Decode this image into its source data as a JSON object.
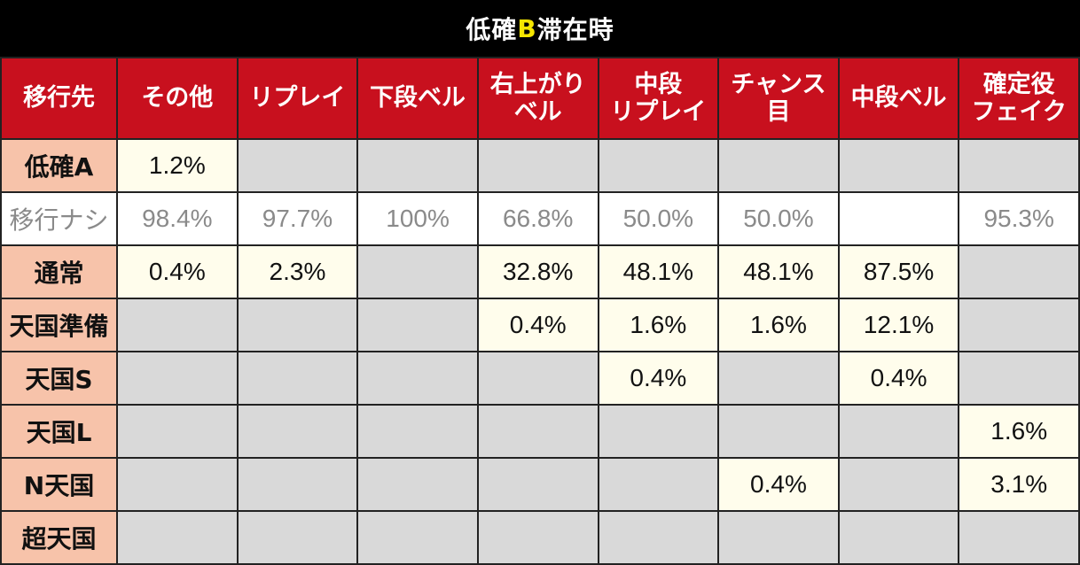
{
  "title": {
    "prefix": "低確",
    "highlight": "B",
    "suffix": "滞在時"
  },
  "table": {
    "corner": "移行先",
    "columns": [
      [
        "その他"
      ],
      [
        "リプレイ"
      ],
      [
        "下段ベル"
      ],
      [
        "右上がり",
        "ベル"
      ],
      [
        "中段",
        "リプレイ"
      ],
      [
        "チャンス目"
      ],
      [
        "中段ベル"
      ],
      [
        "確定役",
        "フェイク"
      ]
    ],
    "rows": [
      {
        "label": "低確A",
        "values": [
          "1.2%",
          "",
          "",
          "",
          "",
          "",
          "",
          ""
        ]
      },
      {
        "label": "移行ナシ",
        "values": [
          "98.4%",
          "97.7%",
          "100%",
          "66.8%",
          "50.0%",
          "50.0%",
          "",
          "95.3%"
        ]
      },
      {
        "label": "通常",
        "values": [
          "0.4%",
          "2.3%",
          "",
          "32.8%",
          "48.1%",
          "48.1%",
          "87.5%",
          ""
        ]
      },
      {
        "label": "天国準備",
        "values": [
          "",
          "",
          "",
          "0.4%",
          "1.6%",
          "1.6%",
          "12.1%",
          ""
        ]
      },
      {
        "label": "天国S",
        "values": [
          "",
          "",
          "",
          "",
          "0.4%",
          "",
          "0.4%",
          ""
        ]
      },
      {
        "label": "天国L",
        "values": [
          "",
          "",
          "",
          "",
          "",
          "",
          "",
          "1.6%"
        ]
      },
      {
        "label": "N天国",
        "values": [
          "",
          "",
          "",
          "",
          "",
          "0.4%",
          "",
          "3.1%"
        ]
      },
      {
        "label": "超天国",
        "values": [
          "",
          "",
          "",
          "",
          "",
          "",
          "",
          ""
        ]
      }
    ]
  }
}
